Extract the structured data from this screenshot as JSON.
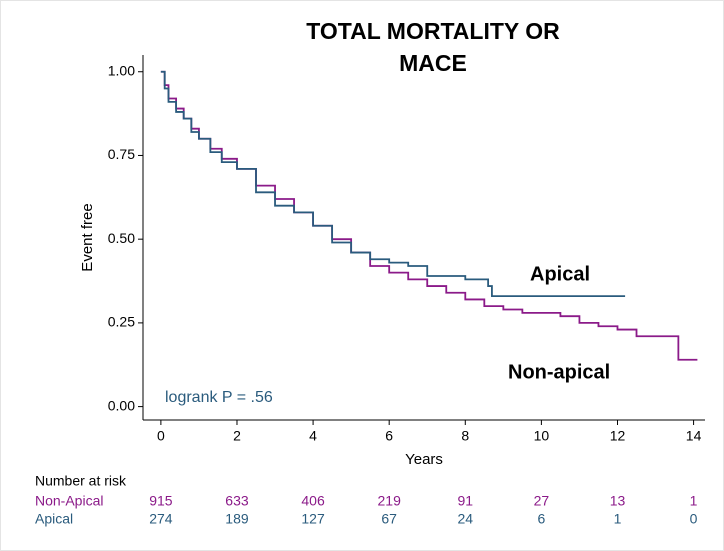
{
  "chart_data": {
    "type": "step",
    "title": [
      "TOTAL MORTALITY OR",
      "MACE"
    ],
    "xlabel": "Years",
    "ylabel": "Event free",
    "xlim": [
      -0.47,
      14.3
    ],
    "ylim": [
      -0.04,
      1.05
    ],
    "xticks": [
      0,
      2,
      4,
      6,
      8,
      10,
      12,
      14
    ],
    "yticks": [
      {
        "value": 0,
        "label": "0.00"
      },
      0.25,
      {
        "value": 0.5,
        "label": "0.50"
      },
      0.75,
      {
        "value": 1,
        "label": "1.00"
      }
    ],
    "series": [
      {
        "name": "Non-apical",
        "color": "#8b1a89",
        "x": [
          0,
          0.1,
          0.2,
          0.4,
          0.6,
          0.8,
          1,
          1.3,
          1.6,
          2,
          2.5,
          3,
          3.5,
          4,
          4.5,
          5,
          5.5,
          6,
          6.5,
          7,
          7.5,
          8,
          8.5,
          9,
          9.5,
          10,
          10.5,
          11,
          11.5,
          12,
          12.5,
          13.6,
          14.1
        ],
        "values": [
          1.0,
          0.96,
          0.92,
          0.89,
          0.86,
          0.83,
          0.8,
          0.77,
          0.74,
          0.71,
          0.66,
          0.62,
          0.58,
          0.54,
          0.5,
          0.46,
          0.42,
          0.4,
          0.38,
          0.36,
          0.34,
          0.32,
          0.3,
          0.29,
          0.28,
          0.28,
          0.27,
          0.25,
          0.24,
          0.23,
          0.21,
          0.14,
          0.14
        ]
      },
      {
        "name": "Apical",
        "color": "#2a5b7d",
        "x": [
          0,
          0.1,
          0.2,
          0.4,
          0.6,
          0.8,
          1,
          1.3,
          1.6,
          2,
          2.5,
          3,
          3.5,
          4,
          4.5,
          5,
          5.5,
          6,
          6.5,
          7,
          8,
          8.6,
          8.7,
          12.2
        ],
        "values": [
          1.0,
          0.95,
          0.91,
          0.88,
          0.86,
          0.82,
          0.8,
          0.76,
          0.73,
          0.71,
          0.64,
          0.6,
          0.58,
          0.54,
          0.49,
          0.46,
          0.44,
          0.43,
          0.42,
          0.39,
          0.38,
          0.36,
          0.33,
          0.33
        ]
      }
    ],
    "annotation": "logrank P = .56",
    "risk_table": {
      "title": "Number at risk",
      "rows": [
        {
          "label": "Non-Apical",
          "values": [
            915,
            633,
            406,
            219,
            91,
            27,
            13,
            1
          ]
        },
        {
          "label": "Apical",
          "values": [
            274,
            189,
            127,
            67,
            24,
            6,
            1,
            0
          ]
        }
      ]
    }
  }
}
